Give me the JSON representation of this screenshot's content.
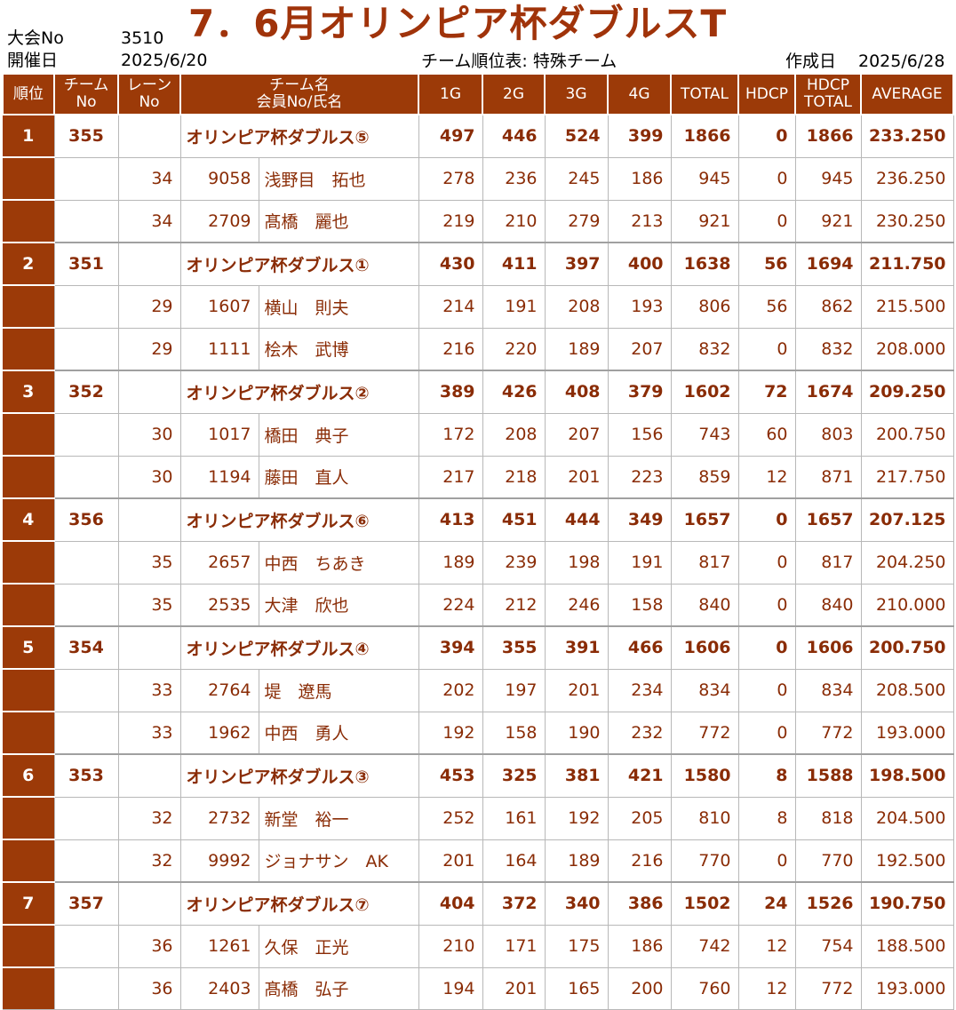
{
  "header": {
    "tournament_no_label": "大会No",
    "tournament_no": "3510",
    "date_label": "開催日",
    "date": "2025/6/20",
    "title": "7．6月オリンピア杯ダブルスT",
    "table_label": "チーム順位表: 特殊チーム",
    "created_label": "作成日",
    "created_date": "2025/6/28"
  },
  "columns": {
    "rank": "順位",
    "team_no_1": "チーム",
    "team_no_2": "No",
    "lane_1": "レーン",
    "lane_2": "No",
    "name_1": "チーム名",
    "name_2": "会員No/氏名",
    "g1": "1G",
    "g2": "2G",
    "g3": "3G",
    "g4": "4G",
    "total": "TOTAL",
    "hdcp": "HDCP",
    "hdcp_total_1": "HDCP",
    "hdcp_total_2": "TOTAL",
    "average": "AVERAGE"
  },
  "rows": [
    {
      "type": "team",
      "rank": "1",
      "team_no": "355",
      "name": "オリンピア杯ダブルス⑤",
      "g1": "497",
      "g2": "446",
      "g3": "524",
      "g4": "399",
      "total": "1866",
      "hdcp": "0",
      "hdcp_total": "1866",
      "average": "233.250"
    },
    {
      "type": "member",
      "lane": "34",
      "member_no": "9058",
      "name": "浅野目　拓也",
      "g1": "278",
      "g2": "236",
      "g3": "245",
      "g4": "186",
      "total": "945",
      "hdcp": "0",
      "hdcp_total": "945",
      "average": "236.250"
    },
    {
      "type": "member",
      "lane": "34",
      "member_no": "2709",
      "name": "髙橋　麗也",
      "g1": "219",
      "g2": "210",
      "g3": "279",
      "g4": "213",
      "total": "921",
      "hdcp": "0",
      "hdcp_total": "921",
      "average": "230.250"
    },
    {
      "type": "team",
      "rank": "2",
      "team_no": "351",
      "name": "オリンピア杯ダブルス①",
      "g1": "430",
      "g2": "411",
      "g3": "397",
      "g4": "400",
      "total": "1638",
      "hdcp": "56",
      "hdcp_total": "1694",
      "average": "211.750"
    },
    {
      "type": "member",
      "lane": "29",
      "member_no": "1607",
      "name": "横山　則夫",
      "g1": "214",
      "g2": "191",
      "g3": "208",
      "g4": "193",
      "total": "806",
      "hdcp": "56",
      "hdcp_total": "862",
      "average": "215.500"
    },
    {
      "type": "member",
      "lane": "29",
      "member_no": "1111",
      "name": "桧木　武博",
      "g1": "216",
      "g2": "220",
      "g3": "189",
      "g4": "207",
      "total": "832",
      "hdcp": "0",
      "hdcp_total": "832",
      "average": "208.000"
    },
    {
      "type": "team",
      "rank": "3",
      "team_no": "352",
      "name": "オリンピア杯ダブルス②",
      "g1": "389",
      "g2": "426",
      "g3": "408",
      "g4": "379",
      "total": "1602",
      "hdcp": "72",
      "hdcp_total": "1674",
      "average": "209.250"
    },
    {
      "type": "member",
      "lane": "30",
      "member_no": "1017",
      "name": "橋田　典子",
      "g1": "172",
      "g2": "208",
      "g3": "207",
      "g4": "156",
      "total": "743",
      "hdcp": "60",
      "hdcp_total": "803",
      "average": "200.750"
    },
    {
      "type": "member",
      "lane": "30",
      "member_no": "1194",
      "name": "藤田　直人",
      "g1": "217",
      "g2": "218",
      "g3": "201",
      "g4": "223",
      "total": "859",
      "hdcp": "12",
      "hdcp_total": "871",
      "average": "217.750"
    },
    {
      "type": "team",
      "rank": "4",
      "team_no": "356",
      "name": "オリンピア杯ダブルス⑥",
      "g1": "413",
      "g2": "451",
      "g3": "444",
      "g4": "349",
      "total": "1657",
      "hdcp": "0",
      "hdcp_total": "1657",
      "average": "207.125"
    },
    {
      "type": "member",
      "lane": "35",
      "member_no": "2657",
      "name": "中西　ちあき",
      "g1": "189",
      "g2": "239",
      "g3": "198",
      "g4": "191",
      "total": "817",
      "hdcp": "0",
      "hdcp_total": "817",
      "average": "204.250"
    },
    {
      "type": "member",
      "lane": "35",
      "member_no": "2535",
      "name": "大津　欣也",
      "g1": "224",
      "g2": "212",
      "g3": "246",
      "g4": "158",
      "total": "840",
      "hdcp": "0",
      "hdcp_total": "840",
      "average": "210.000"
    },
    {
      "type": "team",
      "rank": "5",
      "team_no": "354",
      "name": "オリンピア杯ダブルス④",
      "g1": "394",
      "g2": "355",
      "g3": "391",
      "g4": "466",
      "total": "1606",
      "hdcp": "0",
      "hdcp_total": "1606",
      "average": "200.750"
    },
    {
      "type": "member",
      "lane": "33",
      "member_no": "2764",
      "name": "堤　遼馬",
      "g1": "202",
      "g2": "197",
      "g3": "201",
      "g4": "234",
      "total": "834",
      "hdcp": "0",
      "hdcp_total": "834",
      "average": "208.500"
    },
    {
      "type": "member",
      "lane": "33",
      "member_no": "1962",
      "name": "中西　勇人",
      "g1": "192",
      "g2": "158",
      "g3": "190",
      "g4": "232",
      "total": "772",
      "hdcp": "0",
      "hdcp_total": "772",
      "average": "193.000"
    },
    {
      "type": "team",
      "rank": "6",
      "team_no": "353",
      "name": "オリンピア杯ダブルス③",
      "g1": "453",
      "g2": "325",
      "g3": "381",
      "g4": "421",
      "total": "1580",
      "hdcp": "8",
      "hdcp_total": "1588",
      "average": "198.500"
    },
    {
      "type": "member",
      "lane": "32",
      "member_no": "2732",
      "name": "新堂　裕一",
      "g1": "252",
      "g2": "161",
      "g3": "192",
      "g4": "205",
      "total": "810",
      "hdcp": "8",
      "hdcp_total": "818",
      "average": "204.500"
    },
    {
      "type": "member",
      "lane": "32",
      "member_no": "9992",
      "name": "ジョナサン　AK",
      "g1": "201",
      "g2": "164",
      "g3": "189",
      "g4": "216",
      "total": "770",
      "hdcp": "0",
      "hdcp_total": "770",
      "average": "192.500"
    },
    {
      "type": "team",
      "rank": "7",
      "team_no": "357",
      "name": "オリンピア杯ダブルス⑦",
      "g1": "404",
      "g2": "372",
      "g3": "340",
      "g4": "386",
      "total": "1502",
      "hdcp": "24",
      "hdcp_total": "1526",
      "average": "190.750"
    },
    {
      "type": "member",
      "lane": "36",
      "member_no": "1261",
      "name": "久保　正光",
      "g1": "210",
      "g2": "171",
      "g3": "175",
      "g4": "186",
      "total": "742",
      "hdcp": "12",
      "hdcp_total": "754",
      "average": "188.500"
    },
    {
      "type": "member",
      "lane": "36",
      "member_no": "2403",
      "name": "髙橋　弘子",
      "g1": "194",
      "g2": "201",
      "g3": "165",
      "g4": "200",
      "total": "760",
      "hdcp": "12",
      "hdcp_total": "772",
      "average": "193.000"
    }
  ]
}
